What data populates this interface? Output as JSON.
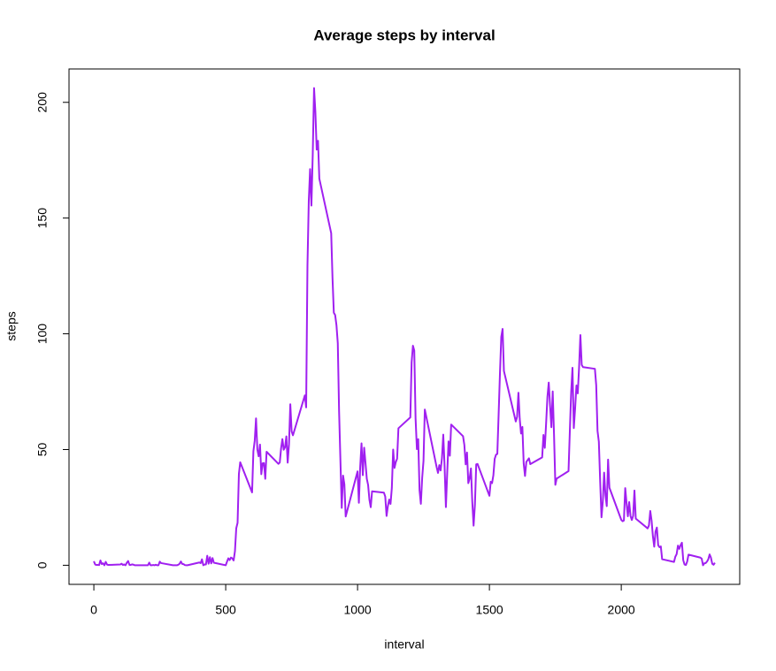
{
  "chart_data": {
    "type": "line",
    "title": "Average steps by interval",
    "xlabel": "interval",
    "ylabel": "steps",
    "color": "#a020f0",
    "x": [
      0,
      5,
      10,
      15,
      20,
      25,
      30,
      35,
      40,
      45,
      50,
      55,
      100,
      105,
      110,
      115,
      120,
      125,
      130,
      135,
      140,
      145,
      150,
      155,
      200,
      205,
      210,
      215,
      220,
      225,
      230,
      235,
      240,
      245,
      250,
      255,
      300,
      305,
      310,
      315,
      320,
      325,
      330,
      335,
      340,
      345,
      350,
      355,
      400,
      405,
      410,
      415,
      420,
      425,
      430,
      435,
      440,
      445,
      450,
      455,
      500,
      505,
      510,
      515,
      520,
      525,
      530,
      535,
      540,
      545,
      550,
      555,
      600,
      605,
      610,
      615,
      620,
      625,
      630,
      635,
      640,
      645,
      650,
      655,
      700,
      705,
      710,
      715,
      720,
      725,
      730,
      735,
      740,
      745,
      750,
      755,
      800,
      805,
      810,
      815,
      820,
      825,
      830,
      835,
      840,
      845,
      850,
      855,
      900,
      905,
      910,
      915,
      920,
      925,
      930,
      935,
      940,
      945,
      950,
      955,
      1000,
      1005,
      1010,
      1015,
      1020,
      1025,
      1030,
      1035,
      1040,
      1045,
      1050,
      1055,
      1100,
      1105,
      1110,
      1115,
      1120,
      1125,
      1130,
      1135,
      1140,
      1145,
      1150,
      1155,
      1200,
      1205,
      1210,
      1215,
      1220,
      1225,
      1230,
      1235,
      1240,
      1245,
      1250,
      1255,
      1300,
      1305,
      1310,
      1315,
      1320,
      1325,
      1330,
      1335,
      1340,
      1345,
      1350,
      1355,
      1400,
      1405,
      1410,
      1415,
      1420,
      1425,
      1430,
      1435,
      1440,
      1445,
      1450,
      1455,
      1500,
      1505,
      1510,
      1515,
      1520,
      1525,
      1530,
      1535,
      1540,
      1545,
      1550,
      1555,
      1600,
      1605,
      1610,
      1615,
      1620,
      1625,
      1630,
      1635,
      1640,
      1645,
      1650,
      1655,
      1700,
      1705,
      1710,
      1715,
      1720,
      1725,
      1730,
      1735,
      1740,
      1745,
      1750,
      1755,
      1800,
      1805,
      1810,
      1815,
      1820,
      1825,
      1830,
      1835,
      1840,
      1845,
      1850,
      1855,
      1900,
      1905,
      1910,
      1915,
      1920,
      1925,
      1930,
      1935,
      1940,
      1945,
      1950,
      1955,
      2000,
      2005,
      2010,
      2015,
      2020,
      2025,
      2030,
      2035,
      2040,
      2045,
      2050,
      2055,
      2100,
      2105,
      2110,
      2115,
      2120,
      2125,
      2130,
      2135,
      2140,
      2145,
      2150,
      2155,
      2200,
      2205,
      2210,
      2215,
      2220,
      2225,
      2230,
      2235,
      2240,
      2245,
      2250,
      2255,
      2300,
      2305,
      2310,
      2315,
      2320,
      2325,
      2330,
      2335,
      2340,
      2345,
      2350,
      2355
    ],
    "values": [
      1.72,
      0.34,
      0.13,
      0.15,
      0.08,
      2.09,
      0.53,
      0.87,
      0,
      1.47,
      0.3,
      0.13,
      0.32,
      0.68,
      0.15,
      0.34,
      0,
      1.11,
      1.83,
      0.17,
      0.17,
      0.38,
      0.26,
      0,
      0,
      0,
      1.13,
      0,
      0,
      0.13,
      0,
      0.23,
      0,
      0,
      1.55,
      0.94,
      0,
      0,
      0,
      0,
      0.21,
      0.62,
      1.62,
      0.58,
      0.49,
      0.08,
      0,
      0,
      1.19,
      0.94,
      2.57,
      0,
      0.34,
      0.36,
      4.11,
      0.66,
      3.49,
      0.83,
      3.11,
      1.11,
      0,
      1.57,
      3,
      2.25,
      3.32,
      2.96,
      2.09,
      6.06,
      16.02,
      18.34,
      39.45,
      44.49,
      31.49,
      49.26,
      53.77,
      63.45,
      49.96,
      47.08,
      52.15,
      39.34,
      44.02,
      44.17,
      37.36,
      49.04,
      43.81,
      44.38,
      50.51,
      54.51,
      49.92,
      50.98,
      55.68,
      44.32,
      52.26,
      69.55,
      57.85,
      56.15,
      73.38,
      68.21,
      129.43,
      157.53,
      171.15,
      155.4,
      177.3,
      206.17,
      195.92,
      179.57,
      183.4,
      167.02,
      143.45,
      124.04,
      109.11,
      108.11,
      103.72,
      95.96,
      66.21,
      45.23,
      24.79,
      38.75,
      34.98,
      21.06,
      40.57,
      26.98,
      42.42,
      52.66,
      38.92,
      50.79,
      44.28,
      37.42,
      34.7,
      28.34,
      25.09,
      31.94,
      31.36,
      29.68,
      21.32,
      25.55,
      28.38,
      26.47,
      33.43,
      49.98,
      42.04,
      44.6,
      46.04,
      59.19,
      63.87,
      87.7,
      94.85,
      92.77,
      63.4,
      50.17,
      54.47,
      32.42,
      26.53,
      37.74,
      45.06,
      67.28,
      42.34,
      39.89,
      43.26,
      40.98,
      46.25,
      56.43,
      42.75,
      25.13,
      39.96,
      53.55,
      47.32,
      60.81,
      55.75,
      51.96,
      43.58,
      48.7,
      35.47,
      37.55,
      41.85,
      27.51,
      17.11,
      26.08,
      43.62,
      43.77,
      30.02,
      36.08,
      35.49,
      38.85,
      45.96,
      47.75,
      48.13,
      65.32,
      82.91,
      98.66,
      102.11,
      83.96,
      62.13,
      64.13,
      74.55,
      63.17,
      56.91,
      59.77,
      43.87,
      38.57,
      44.66,
      45.45,
      46.21,
      43.68,
      46.62,
      56.3,
      50.72,
      61.23,
      72.72,
      78.94,
      68.94,
      59.66,
      75.09,
      56.51,
      34.77,
      37.45,
      40.68,
      58.02,
      74.7,
      85.32,
      59.26,
      67.77,
      77.7,
      74.25,
      85.34,
      99.45,
      86.58,
      85.6,
      84.87,
      77.83,
      58.04,
      53.36,
      36.32,
      20.72,
      27.4,
      40.02,
      30.21,
      25.55,
      45.66,
      33.53,
      19.62,
      19.02,
      19.34,
      33.34,
      26.81,
      21.17,
      27.3,
      21.34,
      19.55,
      21.32,
      32.3,
      20.15,
      15.94,
      17.23,
      23.45,
      19.25,
      12.45,
      8.02,
      14.66,
      16.3,
      8.68,
      7.79,
      8.13,
      2.62,
      1.45,
      3.68,
      4.81,
      8.51,
      7.08,
      8.7,
      9.75,
      2.21,
      0.32,
      0.11,
      1.6,
      4.6,
      3.3,
      2.85,
      0,
      0.83,
      0.96,
      1.58,
      2.6,
      4.7,
      3.3,
      0.64,
      0.23,
      1.08
    ],
    "xlim": [
      -94.2,
      2449.2
    ],
    "xticks": [
      0,
      500,
      1000,
      1500,
      2000
    ],
    "ylim": [
      -8.25,
      214.42
    ],
    "yticks": [
      0,
      50,
      100,
      150,
      200
    ]
  }
}
